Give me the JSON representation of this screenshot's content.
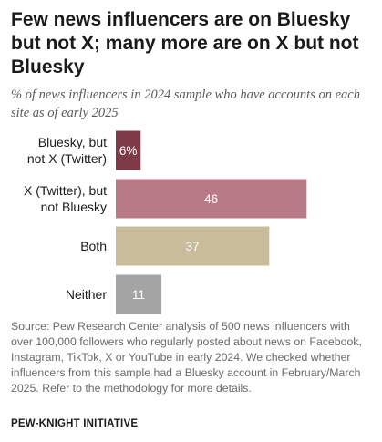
{
  "title": "Few news influencers are on Bluesky but not X; many more are on X but not Bluesky",
  "subtitle": "% of news influencers in 2024 sample who have accounts on each site as of early 2025",
  "source": "Source: Pew Research Center analysis of 500 news influencers with over 100,000 followers who regularly posted about news on Facebook, Instagram, TikTok, X or YouTube in early 2024. We checked whether influencers from this sample had a Bluesky account in February/March 2025. Refer to the methodology for more details.",
  "org": "PEW-KNIGHT INITIATIVE",
  "colors": {
    "bluesky_only": "#7e3b47",
    "x_only": "#b87a87",
    "both": "#c9bc9b",
    "neither": "#a4a4a4"
  },
  "chart_data": {
    "type": "bar",
    "orientation": "horizontal",
    "categories": [
      [
        "Bluesky, but",
        "not X (Twitter)"
      ],
      [
        "X (Twitter), but",
        "not Bluesky"
      ],
      [
        "Both"
      ],
      [
        "Neither"
      ]
    ],
    "values": [
      6,
      46,
      37,
      11
    ],
    "value_labels": [
      "6%",
      "46",
      "37",
      "11"
    ],
    "colors": [
      "#7e3b47",
      "#b87a87",
      "#c9bc9b",
      "#a4a4a4"
    ],
    "xlim": [
      0,
      100
    ],
    "grid": false,
    "legend": false
  }
}
